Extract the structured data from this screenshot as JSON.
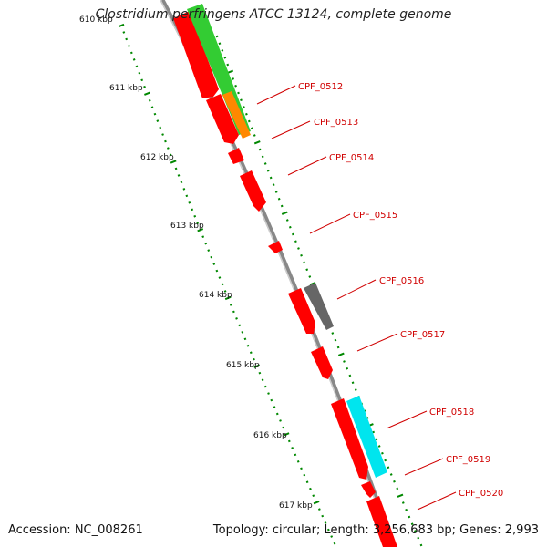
{
  "title": "Clostridium perfringens ATCC 13124, complete genome",
  "footer": {
    "accession": "Accession: NC_008261",
    "summary": "Topology: circular; Length: 3,256,683 bp; Genes: 2,993"
  },
  "ticks": [
    "610 kbp",
    "611 kbp",
    "612 kbp",
    "613 kbp",
    "614 kbp",
    "615 kbp",
    "616 kbp",
    "617 kbp"
  ],
  "genes": [
    "CPF_0512",
    "CPF_0513",
    "CPF_0514",
    "CPF_0515",
    "CPF_0516",
    "CPF_0517",
    "CPF_0518",
    "CPF_0519",
    "CPF_0520"
  ],
  "colors": {
    "cds": "#ff0000",
    "green_feature": "#33cc33",
    "orange_feature": "#ff8800",
    "gray_feature": "#666666",
    "cyan_feature": "#00e5ee",
    "backbone": "#888888",
    "ticks": "#008800",
    "gene_label": "#d00000"
  }
}
